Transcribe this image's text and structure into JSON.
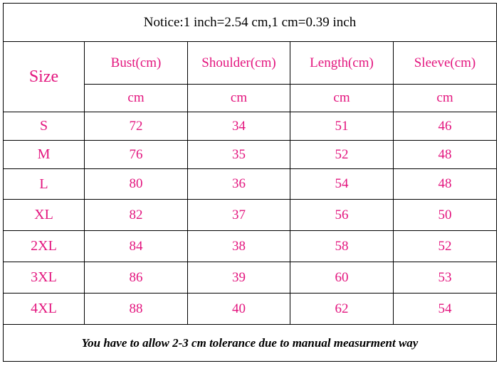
{
  "notice": "Notice:1 inch=2.54 cm,1 cm=0.39 inch",
  "header": {
    "size_label": "Size",
    "columns": [
      "Bust(cm)",
      "Shoulder(cm)",
      "Length(cm)",
      "Sleeve(cm)"
    ],
    "units": [
      "cm",
      "cm",
      "cm",
      "cm"
    ]
  },
  "rows": [
    [
      "S",
      72,
      34,
      51,
      46
    ],
    [
      "M",
      76,
      35,
      52,
      48
    ],
    [
      "L",
      80,
      36,
      54,
      48
    ],
    [
      "XL",
      82,
      37,
      56,
      50
    ],
    [
      "2XL",
      84,
      38,
      58,
      52
    ],
    [
      "3XL",
      86,
      39,
      60,
      53
    ],
    [
      "4XL",
      88,
      40,
      62,
      54
    ]
  ],
  "footer": "You have to allow 2-3 cm tolerance due to manual measurment way"
}
